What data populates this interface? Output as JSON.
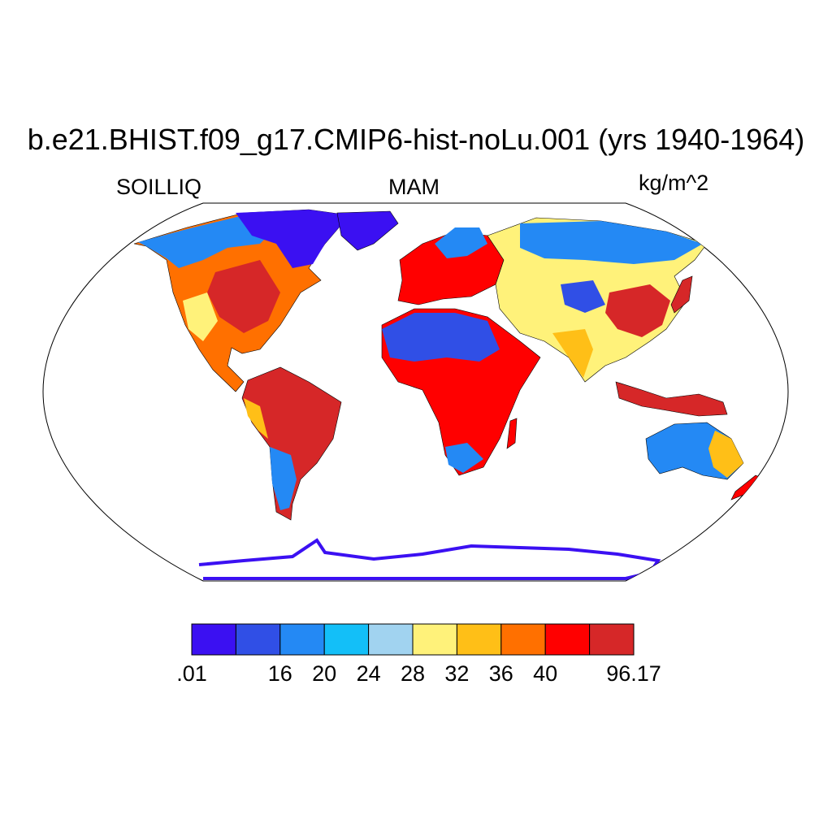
{
  "title": "b.e21.BHIST.f09_g17.CMIP6-hist-noLu.001 (yrs 1940-1964)",
  "left_label": "SOILLIQ",
  "center_label": "MAM",
  "right_label": "kg/m^2",
  "projection": "Robinson",
  "colorbar": {
    "colors": [
      "#3b10f2",
      "#304fe6",
      "#2489f4",
      "#13bff8",
      "#a1d3f0",
      "#fff27a",
      "#ffbf17",
      "#ff7000",
      "#ff0000",
      "#d62728"
    ],
    "labels": [
      ".01",
      "16",
      "20",
      "24",
      "28",
      "32",
      "36",
      "40",
      "96.17"
    ],
    "label_boundaries": [
      0,
      2,
      3,
      4,
      5,
      6,
      7,
      8,
      10
    ]
  }
}
